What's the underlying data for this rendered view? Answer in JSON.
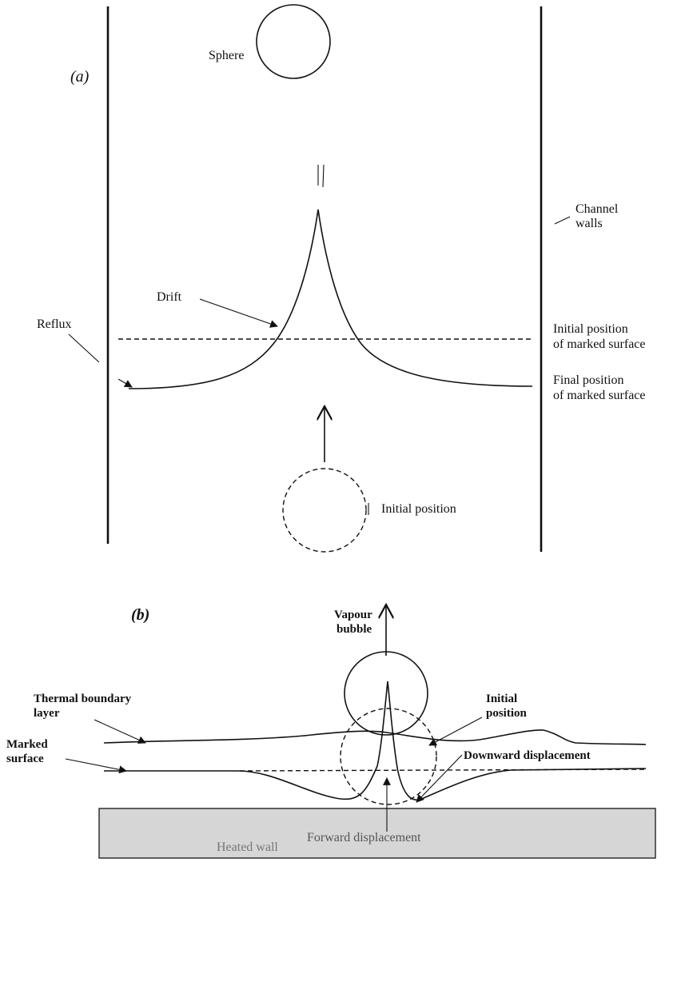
{
  "panel_a": {
    "label": "(a)",
    "sphere_label": "Sphere",
    "channel_walls_label": [
      "Channel",
      "walls"
    ],
    "drift_label": "Drift",
    "reflux_label": "Reflux",
    "initial_surface_label": [
      "Initial position",
      "of marked surface"
    ],
    "final_surface_label": [
      "Final position",
      "of marked surface"
    ],
    "initial_position_label": "Initial position"
  },
  "panel_b": {
    "label": "(b)",
    "vapour_bubble_label": [
      "Vapour",
      "bubble"
    ],
    "thermal_boundary_label": [
      "Thermal boundary",
      "layer"
    ],
    "marked_surface_label": [
      "Marked",
      "surface"
    ],
    "initial_position_label": [
      "Initial",
      "position"
    ],
    "downward_displacement_label": "Downward displacement",
    "forward_displacement_label": "Forward displacement",
    "heated_wall_label": "Heated wall",
    "colors": {
      "heated_wall_fill": "#d6d6d6",
      "wall_text": "#777777"
    }
  }
}
